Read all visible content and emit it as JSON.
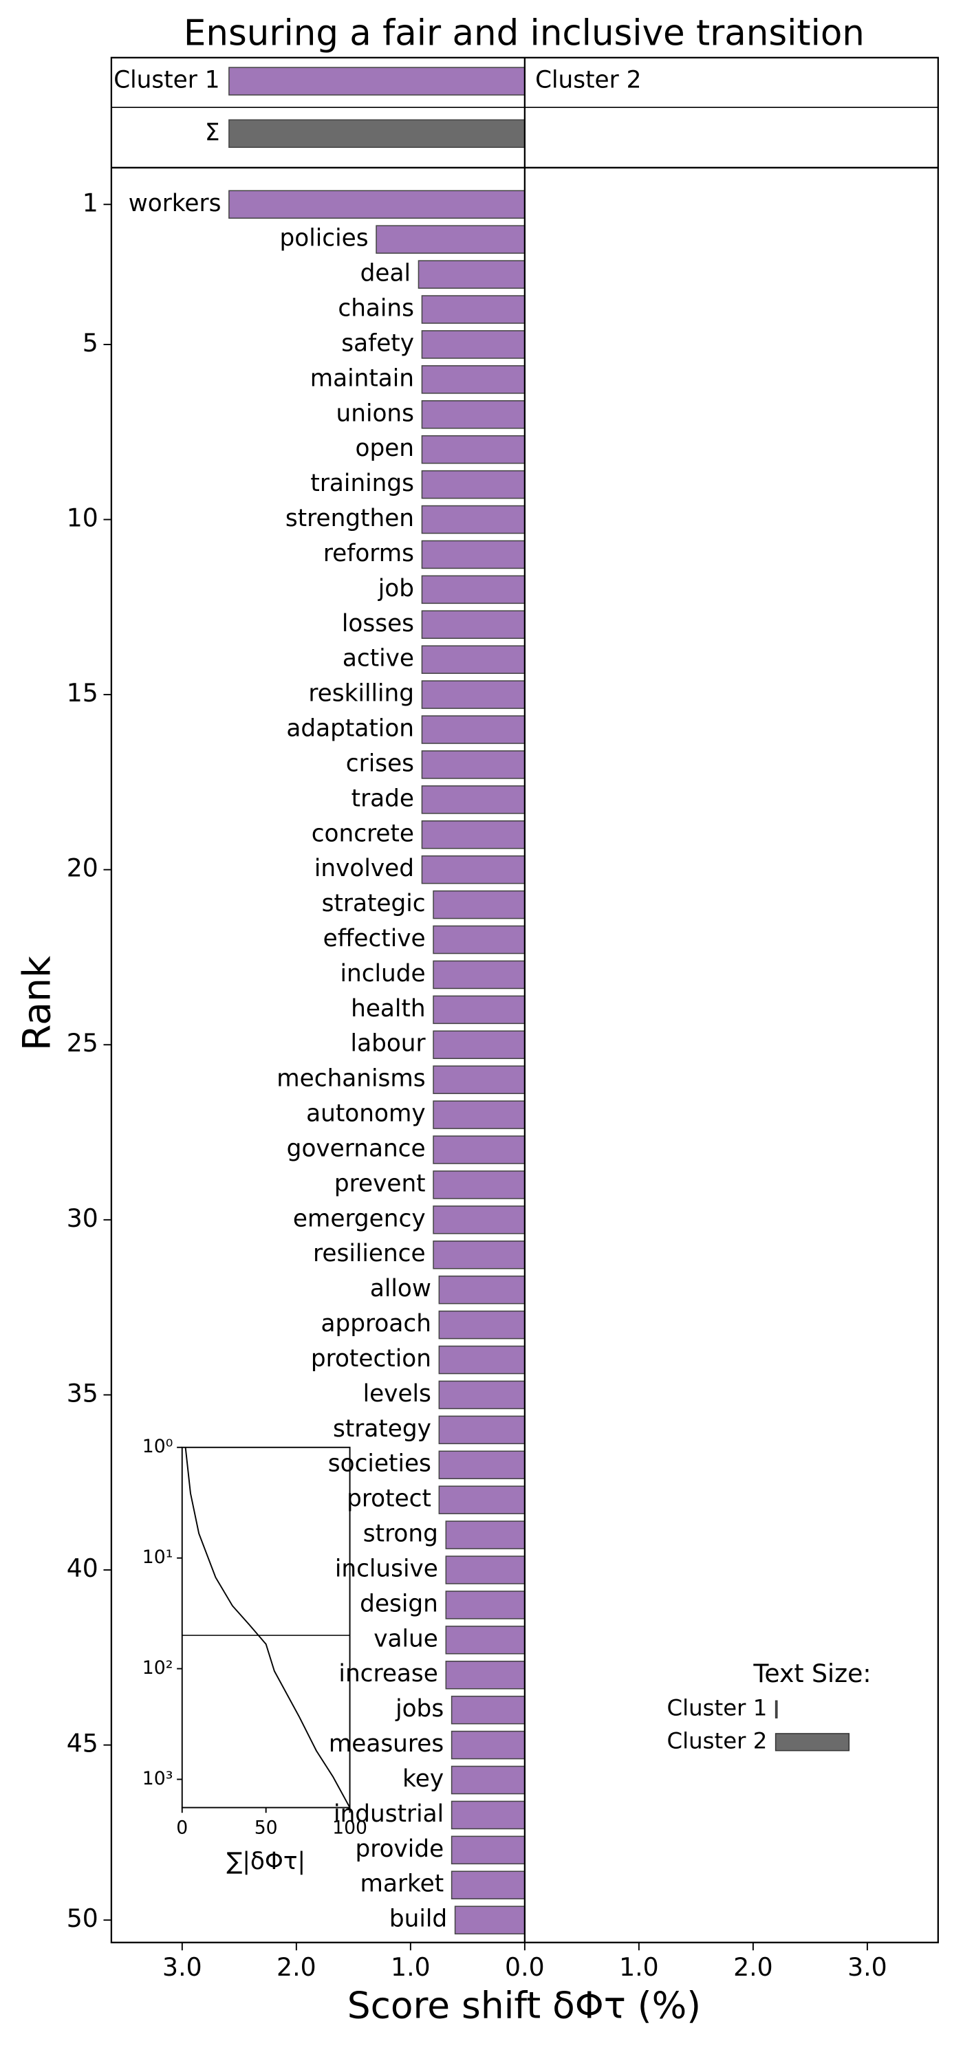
{
  "chart_data": {
    "type": "word_shift",
    "title": "Ensuring a fair and inclusive transition",
    "xlabel": "Score shift δΦτ (%)",
    "ylabel": "Rank",
    "xlim": [
      -3.62,
      3.62
    ],
    "xticks": [
      {
        "value": -3,
        "label": "3.0"
      },
      {
        "value": -2,
        "label": "2.0"
      },
      {
        "value": -1,
        "label": "1.0"
      },
      {
        "value": 0,
        "label": "0.0"
      },
      {
        "value": 1,
        "label": "1.0"
      },
      {
        "value": 2,
        "label": "2.0"
      },
      {
        "value": 3,
        "label": "3.0"
      }
    ],
    "ylim": [
      -0.05,
      50.64
    ],
    "y_inverted": true,
    "yticks": [
      1,
      5,
      10,
      15,
      20,
      25,
      30,
      35,
      40,
      45,
      50
    ],
    "header": {
      "left": "Cluster 1",
      "right": "Cluster 2",
      "value": -2.59,
      "color": "#a077b8"
    },
    "sum": {
      "label": "Σ",
      "value": -2.59,
      "color": "#6b6b6b"
    },
    "categories": [
      "workers",
      "policies",
      "deal",
      "chains",
      "safety",
      "maintain",
      "unions",
      "open",
      "trainings",
      "strengthen",
      "reforms",
      "job",
      "losses",
      "active",
      "reskilling",
      "adaptation",
      "crises",
      "trade",
      "concrete",
      "involved",
      "strategic",
      "effective",
      "include",
      "health",
      "labour",
      "mechanisms",
      "autonomy",
      "governance",
      "prevent",
      "emergency",
      "resilience",
      "allow",
      "approach",
      "protection",
      "levels",
      "strategy",
      "societies",
      "protect",
      "strong",
      "inclusive",
      "design",
      "value",
      "increase",
      "jobs",
      "measures",
      "key",
      "industrial",
      "provide",
      "market",
      "build"
    ],
    "series": [
      {
        "name": "Cluster 1",
        "color": "#a077b8",
        "values": [
          -2.59,
          -1.3,
          -0.93,
          -0.9,
          -0.9,
          -0.9,
          -0.9,
          -0.9,
          -0.9,
          -0.9,
          -0.9,
          -0.9,
          -0.9,
          -0.9,
          -0.9,
          -0.9,
          -0.9,
          -0.9,
          -0.9,
          -0.9,
          -0.8,
          -0.8,
          -0.8,
          -0.8,
          -0.8,
          -0.8,
          -0.8,
          -0.8,
          -0.8,
          -0.8,
          -0.8,
          -0.75,
          -0.75,
          -0.75,
          -0.75,
          -0.75,
          -0.75,
          -0.75,
          -0.69,
          -0.69,
          -0.69,
          -0.69,
          -0.69,
          -0.64,
          -0.64,
          -0.64,
          -0.64,
          -0.64,
          -0.64,
          -0.61
        ]
      }
    ],
    "inset": {
      "type": "line",
      "xlabel": "∑|δΦτ|",
      "xlim": [
        0,
        100
      ],
      "xticks": [
        0,
        50,
        100
      ],
      "ylim": [
        1,
        1800
      ],
      "log_y": true,
      "y_inverted": true,
      "yticks": [
        {
          "value": 1,
          "label": "10⁰"
        },
        {
          "value": 10,
          "label": "10¹"
        },
        {
          "value": 100,
          "label": "10²"
        },
        {
          "value": 1000,
          "label": "10³"
        }
      ],
      "hline": 50,
      "x": [
        2,
        5,
        10,
        20,
        30,
        40,
        50,
        55,
        70,
        80,
        90,
        100
      ],
      "values": [
        1,
        2.6,
        6,
        15,
        27,
        40,
        60,
        105,
        275,
        550,
        950,
        1800
      ]
    },
    "text_size": {
      "title": "Text Size:",
      "series": [
        {
          "name": "Cluster 1",
          "value": 2,
          "color": "#6b6b6b"
        },
        {
          "name": "Cluster 2",
          "value": 100,
          "color": "#6b6b6b"
        }
      ]
    }
  }
}
